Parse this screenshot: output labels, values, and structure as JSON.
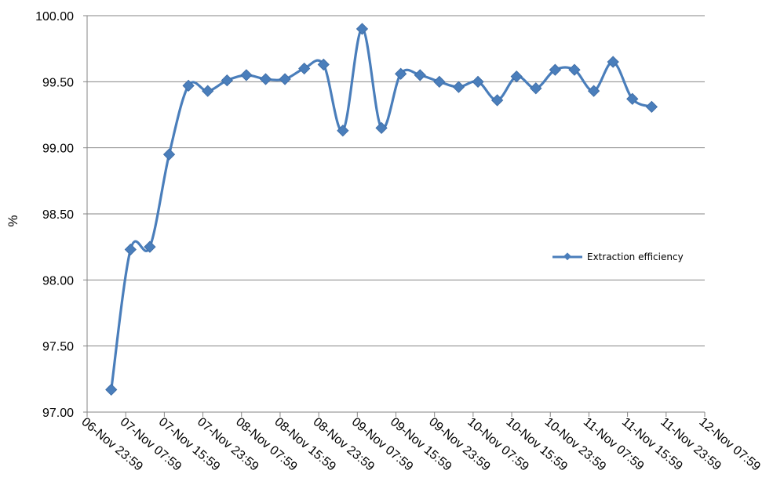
{
  "chart_data": {
    "type": "line",
    "title": "",
    "xlabel": "",
    "ylabel": "%",
    "ylim": [
      97.0,
      100.0
    ],
    "yticks": [
      "97.00",
      "97.50",
      "98.00",
      "98.50",
      "99.00",
      "99.50",
      "100.00"
    ],
    "xticks": [
      "06-Nov 23:59",
      "07-Nov 07:59",
      "07-Nov 15:59",
      "07-Nov 23:59",
      "08-Nov 07:59",
      "08-Nov 15:59",
      "08-Nov 23:59",
      "09-Nov 07:59",
      "09-Nov 15:59",
      "09-Nov 23:59",
      "10-Nov 07:59",
      "10-Nov 15:59",
      "10-Nov 23:59",
      "11-Nov 07:59",
      "11-Nov 15:59",
      "11-Nov 23:59",
      "12-Nov 07:59"
    ],
    "grid": true,
    "legend_position": "right",
    "series": [
      {
        "name": "Extraction efficiency",
        "color": "#4a7ebb",
        "marker": "diamond",
        "x": [
          "07-Nov 04:59",
          "07-Nov 08:59",
          "07-Nov 12:59",
          "07-Nov 16:59",
          "07-Nov 20:59",
          "08-Nov 00:59",
          "08-Nov 04:59",
          "08-Nov 08:59",
          "08-Nov 12:59",
          "08-Nov 16:59",
          "08-Nov 20:59",
          "09-Nov 00:59",
          "09-Nov 04:59",
          "09-Nov 08:59",
          "09-Nov 12:59",
          "09-Nov 16:59",
          "09-Nov 20:59",
          "10-Nov 00:59",
          "10-Nov 04:59",
          "10-Nov 08:59",
          "10-Nov 12:59",
          "10-Nov 16:59",
          "10-Nov 20:59",
          "11-Nov 00:59",
          "11-Nov 04:59",
          "11-Nov 08:59",
          "11-Nov 12:59",
          "11-Nov 16:59",
          "11-Nov 20:59"
        ],
        "values": [
          97.17,
          98.23,
          98.25,
          98.95,
          99.47,
          99.43,
          99.51,
          99.55,
          99.52,
          99.52,
          99.6,
          99.63,
          99.13,
          99.9,
          99.15,
          99.56,
          99.55,
          99.5,
          99.46,
          99.5,
          99.36,
          99.54,
          99.45,
          99.59,
          99.59,
          99.43,
          99.65,
          99.37,
          99.31
        ]
      }
    ]
  }
}
